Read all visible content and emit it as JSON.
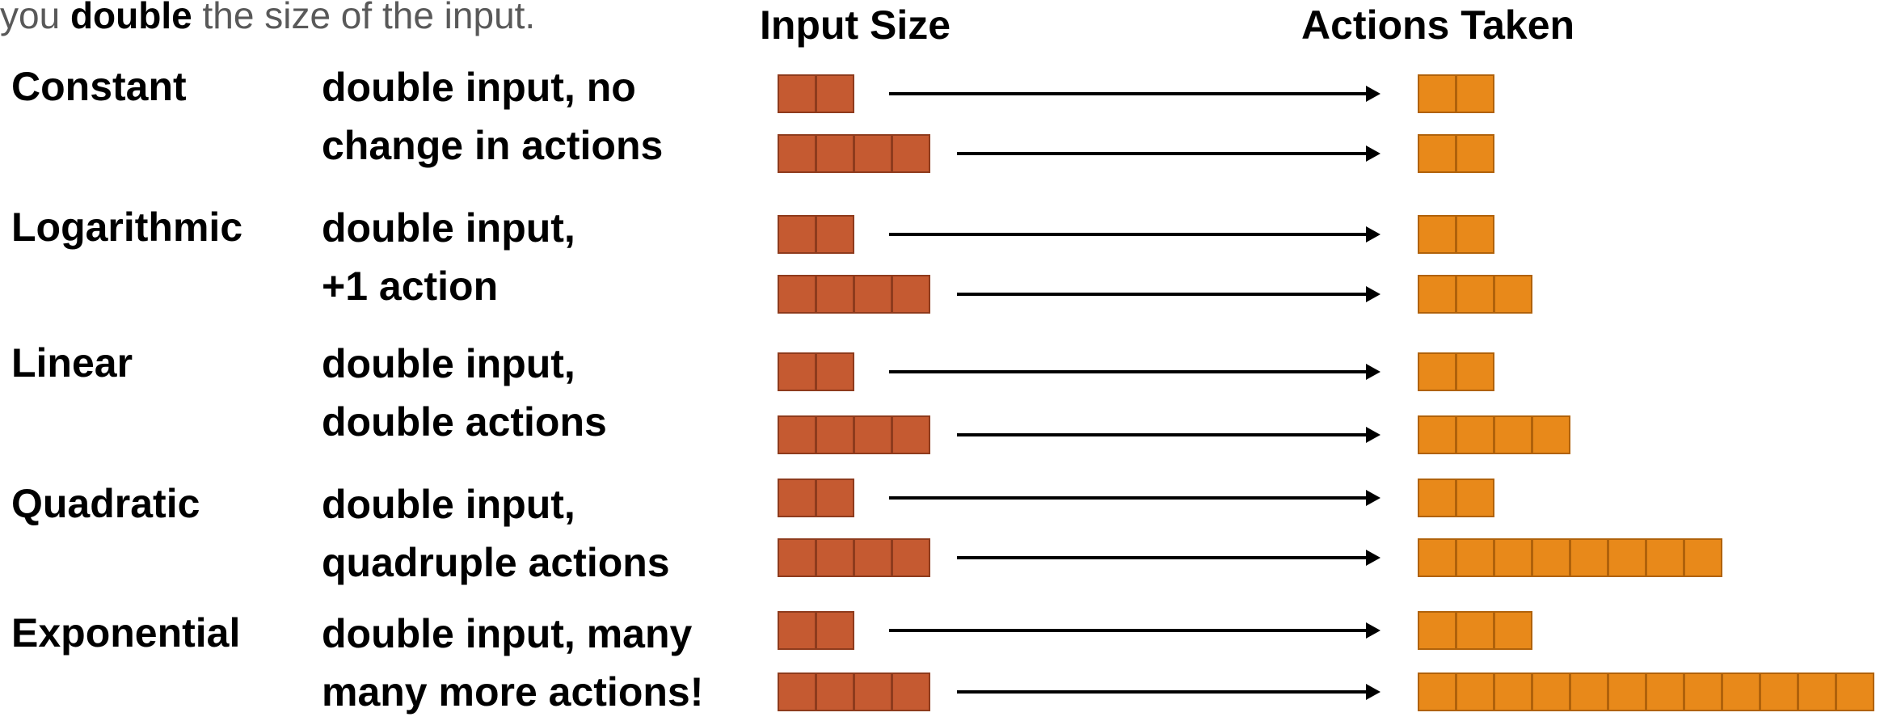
{
  "intro": {
    "before": "you ",
    "bold": "double",
    "after": " the size of the input."
  },
  "headers": {
    "input": "Input Size",
    "actions": "Actions Taken"
  },
  "colors": {
    "input_box": "#c55a31",
    "action_box": "#e8891a"
  },
  "rows": [
    {
      "name": "Constant",
      "desc1": "double input, no",
      "desc2": "change in actions",
      "input": [
        2,
        4
      ],
      "actions": [
        2,
        2
      ]
    },
    {
      "name": "Logarithmic",
      "desc1": "double input,",
      "desc2": "+1 action",
      "input": [
        2,
        4
      ],
      "actions": [
        2,
        3
      ]
    },
    {
      "name": "Linear",
      "desc1": "double input,",
      "desc2": "double actions",
      "input": [
        2,
        4
      ],
      "actions": [
        2,
        4
      ]
    },
    {
      "name": "Quadratic",
      "desc1": "double input,",
      "desc2": "quadruple actions",
      "input": [
        2,
        4
      ],
      "actions": [
        2,
        8
      ]
    },
    {
      "name": "Exponential",
      "desc1": "double input, many",
      "desc2": "many more actions!",
      "input": [
        2,
        4
      ],
      "actions": [
        3,
        12
      ]
    }
  ]
}
